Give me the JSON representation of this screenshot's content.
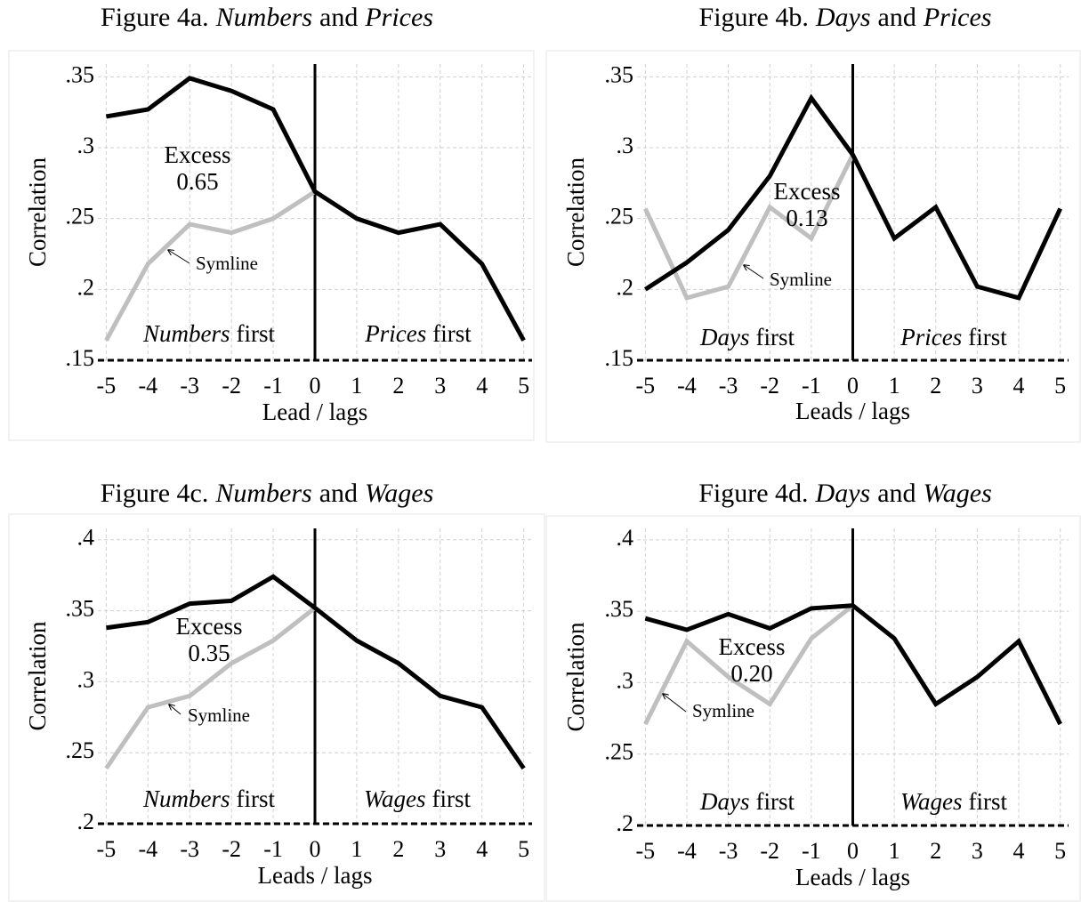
{
  "chart_data": [
    {
      "type": "line",
      "title": [
        "Figure 4a.",
        "Numbers",
        "and",
        "Prices"
      ],
      "x": [
        -5,
        -4,
        -3,
        -2,
        -1,
        0,
        1,
        2,
        3,
        4,
        5
      ],
      "series": [
        {
          "color": "#000000",
          "values": [
            0.322,
            0.327,
            0.349,
            0.34,
            0.327,
            0.269,
            0.25,
            0.24,
            0.246,
            0.218,
            0.164
          ]
        },
        {
          "color": "#bfbfbf",
          "values": [
            0.164,
            0.218,
            0.246,
            0.24,
            0.25,
            0.269,
            null,
            null,
            null,
            null,
            null
          ]
        }
      ],
      "xlim": [
        -5.2,
        5.2
      ],
      "ylim": [
        0.15,
        0.359
      ],
      "xticks": [
        -5,
        -4,
        -3,
        -2,
        -1,
        0,
        1,
        2,
        3,
        4,
        5
      ],
      "yticks": [
        {
          "value": 0.15,
          "label": ".15"
        },
        {
          "value": 0.2,
          "label": ".2"
        },
        {
          "value": 0.25,
          "label": ".25"
        },
        {
          "value": 0.3,
          "label": ".3"
        },
        {
          "value": 0.35,
          "label": ".35"
        }
      ],
      "grid": true,
      "ylabel": "Correlation",
      "xlabel": "Lead / lags",
      "annotations": {
        "excess": "Excess",
        "excess_value": "0.65",
        "symline": "Symline",
        "left_label": [
          "Numbers",
          "first"
        ],
        "right_label": [
          "Prices",
          "first"
        ]
      }
    },
    {
      "type": "line",
      "title": [
        "Figure 4b.",
        "Days",
        "and",
        "Prices"
      ],
      "x": [
        -5,
        -4,
        -3,
        -2,
        -1,
        0,
        1,
        2,
        3,
        4,
        5
      ],
      "series": [
        {
          "color": "#000000",
          "values": [
            0.2,
            0.219,
            0.242,
            0.28,
            0.335,
            0.295,
            0.236,
            0.258,
            0.202,
            0.194,
            0.257
          ]
        },
        {
          "color": "#bfbfbf",
          "values": [
            0.257,
            0.194,
            0.202,
            0.258,
            0.236,
            0.295,
            null,
            null,
            null,
            null,
            null
          ]
        }
      ],
      "xlim": [
        -5.2,
        5.2
      ],
      "ylim": [
        0.15,
        0.359
      ],
      "xticks": [
        -5,
        -4,
        -3,
        -2,
        -1,
        0,
        1,
        2,
        3,
        4,
        5
      ],
      "yticks": [
        {
          "value": 0.15,
          "label": ".15"
        },
        {
          "value": 0.2,
          "label": ".2"
        },
        {
          "value": 0.25,
          "label": ".25"
        },
        {
          "value": 0.3,
          "label": ".3"
        },
        {
          "value": 0.35,
          "label": ".35"
        }
      ],
      "grid": true,
      "ylabel": "Correlation",
      "xlabel": "Leads / lags",
      "annotations": {
        "excess": "Excess",
        "excess_value": "0.13",
        "symline": "Symline",
        "left_label": [
          "Days",
          "first"
        ],
        "right_label": [
          "Prices",
          "first"
        ]
      }
    },
    {
      "type": "line",
      "title": [
        "Figure 4c.",
        "Numbers",
        "and",
        "Wages"
      ],
      "x": [
        -5,
        -4,
        -3,
        -2,
        -1,
        0,
        1,
        2,
        3,
        4,
        5
      ],
      "series": [
        {
          "color": "#000000",
          "values": [
            0.338,
            0.342,
            0.355,
            0.357,
            0.374,
            0.352,
            0.329,
            0.313,
            0.29,
            0.282,
            0.239
          ]
        },
        {
          "color": "#bfbfbf",
          "values": [
            0.239,
            0.282,
            0.29,
            0.313,
            0.329,
            0.352,
            null,
            null,
            null,
            null,
            null
          ]
        }
      ],
      "xlim": [
        -5.2,
        5.2
      ],
      "ylim": [
        0.2,
        0.408
      ],
      "xticks": [
        -5,
        -4,
        -3,
        -2,
        -1,
        0,
        1,
        2,
        3,
        4,
        5
      ],
      "yticks": [
        {
          "value": 0.2,
          "label": ".2"
        },
        {
          "value": 0.25,
          "label": ".25"
        },
        {
          "value": 0.3,
          "label": ".3"
        },
        {
          "value": 0.35,
          "label": ".35"
        },
        {
          "value": 0.4,
          "label": ".4"
        }
      ],
      "grid": true,
      "ylabel": "Correlation",
      "xlabel": "Leads / lags",
      "annotations": {
        "excess": "Excess",
        "excess_value": "0.35",
        "symline": "Symline",
        "left_label": [
          "Numbers",
          "first"
        ],
        "right_label": [
          "Wages",
          "first"
        ]
      }
    },
    {
      "type": "line",
      "title": [
        "Figure 4d.",
        "Days",
        "and",
        "Wages"
      ],
      "x": [
        -5,
        -4,
        -3,
        -2,
        -1,
        0,
        1,
        2,
        3,
        4,
        5
      ],
      "series": [
        {
          "color": "#000000",
          "values": [
            0.345,
            0.337,
            0.348,
            0.338,
            0.352,
            0.354,
            0.331,
            0.285,
            0.304,
            0.329,
            0.271
          ]
        },
        {
          "color": "#bfbfbf",
          "values": [
            0.271,
            0.329,
            0.304,
            0.285,
            0.331,
            0.354,
            null,
            null,
            null,
            null,
            null
          ]
        }
      ],
      "xlim": [
        -5.2,
        5.2
      ],
      "ylim": [
        0.2,
        0.408
      ],
      "xticks": [
        -5,
        -4,
        -3,
        -2,
        -1,
        0,
        1,
        2,
        3,
        4,
        5
      ],
      "yticks": [
        {
          "value": 0.2,
          "label": ".2"
        },
        {
          "value": 0.25,
          "label": ".25"
        },
        {
          "value": 0.3,
          "label": ".3"
        },
        {
          "value": 0.35,
          "label": ".35"
        },
        {
          "value": 0.4,
          "label": ".4"
        }
      ],
      "grid": true,
      "ylabel": "Correlation",
      "xlabel": "Leads / lags",
      "annotations": {
        "excess": "Excess",
        "excess_value": "0.20",
        "symline": "Symline",
        "left_label": [
          "Days",
          "first"
        ],
        "right_label": [
          "Wages",
          "first"
        ]
      }
    }
  ]
}
